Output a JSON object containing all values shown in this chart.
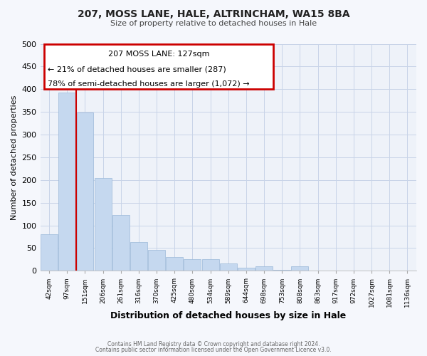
{
  "title1": "207, MOSS LANE, HALE, ALTRINCHAM, WA15 8BA",
  "title2": "Size of property relative to detached houses in Hale",
  "xlabel": "Distribution of detached houses by size in Hale",
  "ylabel": "Number of detached properties",
  "categories": [
    "42sqm",
    "97sqm",
    "151sqm",
    "206sqm",
    "261sqm",
    "316sqm",
    "370sqm",
    "425sqm",
    "480sqm",
    "534sqm",
    "589sqm",
    "644sqm",
    "698sqm",
    "753sqm",
    "808sqm",
    "863sqm",
    "917sqm",
    "972sqm",
    "1027sqm",
    "1081sqm",
    "1136sqm"
  ],
  "values": [
    80,
    392,
    349,
    205,
    123,
    63,
    46,
    31,
    25,
    25,
    16,
    6,
    10,
    2,
    10,
    1,
    0,
    0,
    0,
    0,
    0
  ],
  "bar_color": "#c5d8ef",
  "bar_edge_color": "#9ab8d8",
  "annotation_title": "207 MOSS LANE: 127sqm",
  "annotation_line1": "← 21% of detached houses are smaller (287)",
  "annotation_line2": "78% of semi-detached houses are larger (1,072) →",
  "redline_color": "#cc0000",
  "annotation_box_edgecolor": "#cc0000",
  "ylim": [
    0,
    500
  ],
  "yticks": [
    0,
    50,
    100,
    150,
    200,
    250,
    300,
    350,
    400,
    450,
    500
  ],
  "grid_color": "#c8d4e8",
  "bg_color": "#eef2f9",
  "fig_bg_color": "#f5f7fc",
  "footer1": "Contains HM Land Registry data © Crown copyright and database right 2024.",
  "footer2": "Contains public sector information licensed under the Open Government Licence v3.0."
}
